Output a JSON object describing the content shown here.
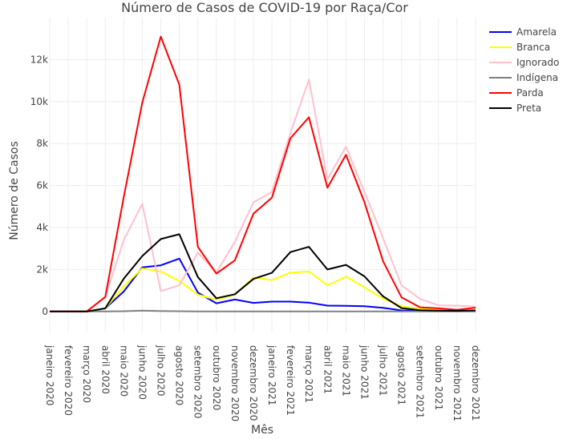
{
  "chart_data": {
    "type": "line",
    "title": "Número de Casos de COVID-19 por Raça/Cor",
    "xlabel": "Mês",
    "ylabel": "Número de Casos",
    "ylim": [
      -1000,
      14000
    ],
    "yticks": [
      0,
      2000,
      4000,
      6000,
      8000,
      10000,
      12000
    ],
    "ytick_labels": [
      "0",
      "2k",
      "4k",
      "6k",
      "8k",
      "10k",
      "12k"
    ],
    "grid": true,
    "legend_position": "right",
    "categories": [
      "janeiro 2020",
      "fevereiro 2020",
      "março 2020",
      "abril 2020",
      "maio 2020",
      "junho 2020",
      "julho 2020",
      "agosto 2020",
      "setembro 2020",
      "outubro 2020",
      "novembro 2020",
      "dezembro 2020",
      "janeiro 2021",
      "fevereiro 2021",
      "março 2021",
      "abril 2021",
      "maio 2021",
      "junho 2021",
      "julho 2021",
      "agosto 2021",
      "setembro 2021",
      "outubro 2021",
      "novembro 2021",
      "dezembro 2021"
    ],
    "series": [
      {
        "name": "Amarela",
        "color": "#0000ff",
        "values": [
          0,
          0,
          0,
          150,
          950,
          2100,
          2200,
          2520,
          900,
          390,
          570,
          410,
          470,
          470,
          420,
          280,
          270,
          250,
          170,
          50,
          30,
          20,
          10,
          20
        ]
      },
      {
        "name": "Branca",
        "color": "#ffff00",
        "values": [
          0,
          0,
          0,
          150,
          1200,
          2050,
          1900,
          1450,
          800,
          560,
          800,
          1620,
          1500,
          1850,
          1900,
          1250,
          1660,
          1150,
          610,
          250,
          120,
          80,
          50,
          40
        ]
      },
      {
        "name": "Ignorado",
        "color": "#ffc0cb",
        "values": [
          0,
          0,
          0,
          700,
          3400,
          5130,
          970,
          1250,
          2800,
          1850,
          3320,
          5200,
          5700,
          8500,
          11050,
          6300,
          7850,
          5700,
          3500,
          1240,
          600,
          290,
          280,
          230
        ]
      },
      {
        "name": "Indígena",
        "color": "#808080",
        "values": [
          0,
          0,
          0,
          0,
          10,
          40,
          20,
          10,
          0,
          0,
          0,
          0,
          0,
          0,
          0,
          0,
          0,
          0,
          0,
          0,
          0,
          0,
          0,
          0
        ]
      },
      {
        "name": "Parda",
        "color": "#ff0000",
        "values": [
          0,
          0,
          0,
          690,
          5450,
          9950,
          13100,
          10800,
          3080,
          1800,
          2440,
          4660,
          5420,
          8250,
          9250,
          5900,
          7460,
          5200,
          2400,
          670,
          200,
          150,
          80,
          180
        ]
      },
      {
        "name": "Preta",
        "color": "#000000",
        "values": [
          0,
          0,
          0,
          150,
          1560,
          2640,
          3450,
          3680,
          1640,
          630,
          820,
          1550,
          1840,
          2830,
          3080,
          2000,
          2220,
          1670,
          720,
          160,
          60,
          40,
          30,
          50
        ]
      }
    ]
  }
}
